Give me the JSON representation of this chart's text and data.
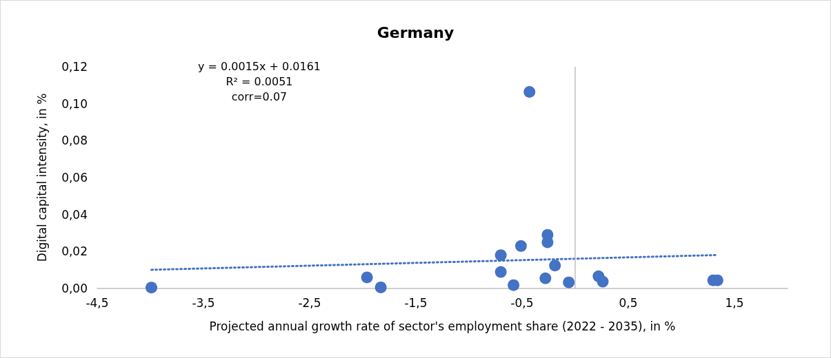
{
  "chart_data": {
    "type": "scatter",
    "title": "Germany",
    "xlabel": "Projected annual growth rate of sector's employment share (2022 - 2035), in %",
    "ylabel": "Digital capital intensity, in %",
    "annotations": [
      "y = 0.0015x + 0.0161",
      "R² = 0.0051",
      "corr=0.07"
    ],
    "xlim": [
      -4.5,
      2
    ],
    "xticks": [
      {
        "value": -4.5,
        "label": "-4,5"
      },
      {
        "value": -3.5,
        "label": "-3,5"
      },
      {
        "value": -2.5,
        "label": "-2,5"
      },
      {
        "value": -1.5,
        "label": "-1,5"
      },
      {
        "value": -0.5,
        "label": "-0,5"
      },
      {
        "value": 0.5,
        "label": "0,5"
      },
      {
        "value": 1.5,
        "label": "1,5"
      }
    ],
    "ylim": [
      0,
      0.12
    ],
    "yticks": [
      {
        "value": 0,
        "label": "0,00"
      },
      {
        "value": 0.02,
        "label": "0,02"
      },
      {
        "value": 0.04,
        "label": "0,04"
      },
      {
        "value": 0.06,
        "label": "0,06"
      },
      {
        "value": 0.08,
        "label": "0,08"
      },
      {
        "value": 0.1,
        "label": "0,10"
      },
      {
        "value": 0.12,
        "label": "0,12"
      }
    ],
    "grid": false,
    "marker": "circle",
    "ref_lines": [
      {
        "axis": "x",
        "value": 0,
        "color": "#bfbfbf"
      }
    ],
    "series": [
      {
        "color": "#4472c4",
        "x": [
          -3.99,
          -1.96,
          -1.83,
          -0.43,
          -0.26,
          -0.26,
          -0.51,
          -0.7,
          -0.7,
          -0.19,
          -0.28,
          -0.58,
          -0.06,
          0.22,
          0.26,
          1.3,
          1.34
        ],
        "values": [
          0.0005,
          0.006,
          0.0006,
          0.1064,
          0.029,
          0.025,
          0.023,
          0.018,
          0.0089,
          0.0124,
          0.0055,
          0.0018,
          0.0033,
          0.0066,
          0.0037,
          0.0044,
          0.0044
        ]
      },
      {
        "type": "line",
        "color": "#4472c4",
        "line_style": "dotted",
        "marker": "none",
        "x": [
          -3.99,
          1.34
        ],
        "values": [
          0.0101,
          0.0181
        ]
      }
    ]
  }
}
